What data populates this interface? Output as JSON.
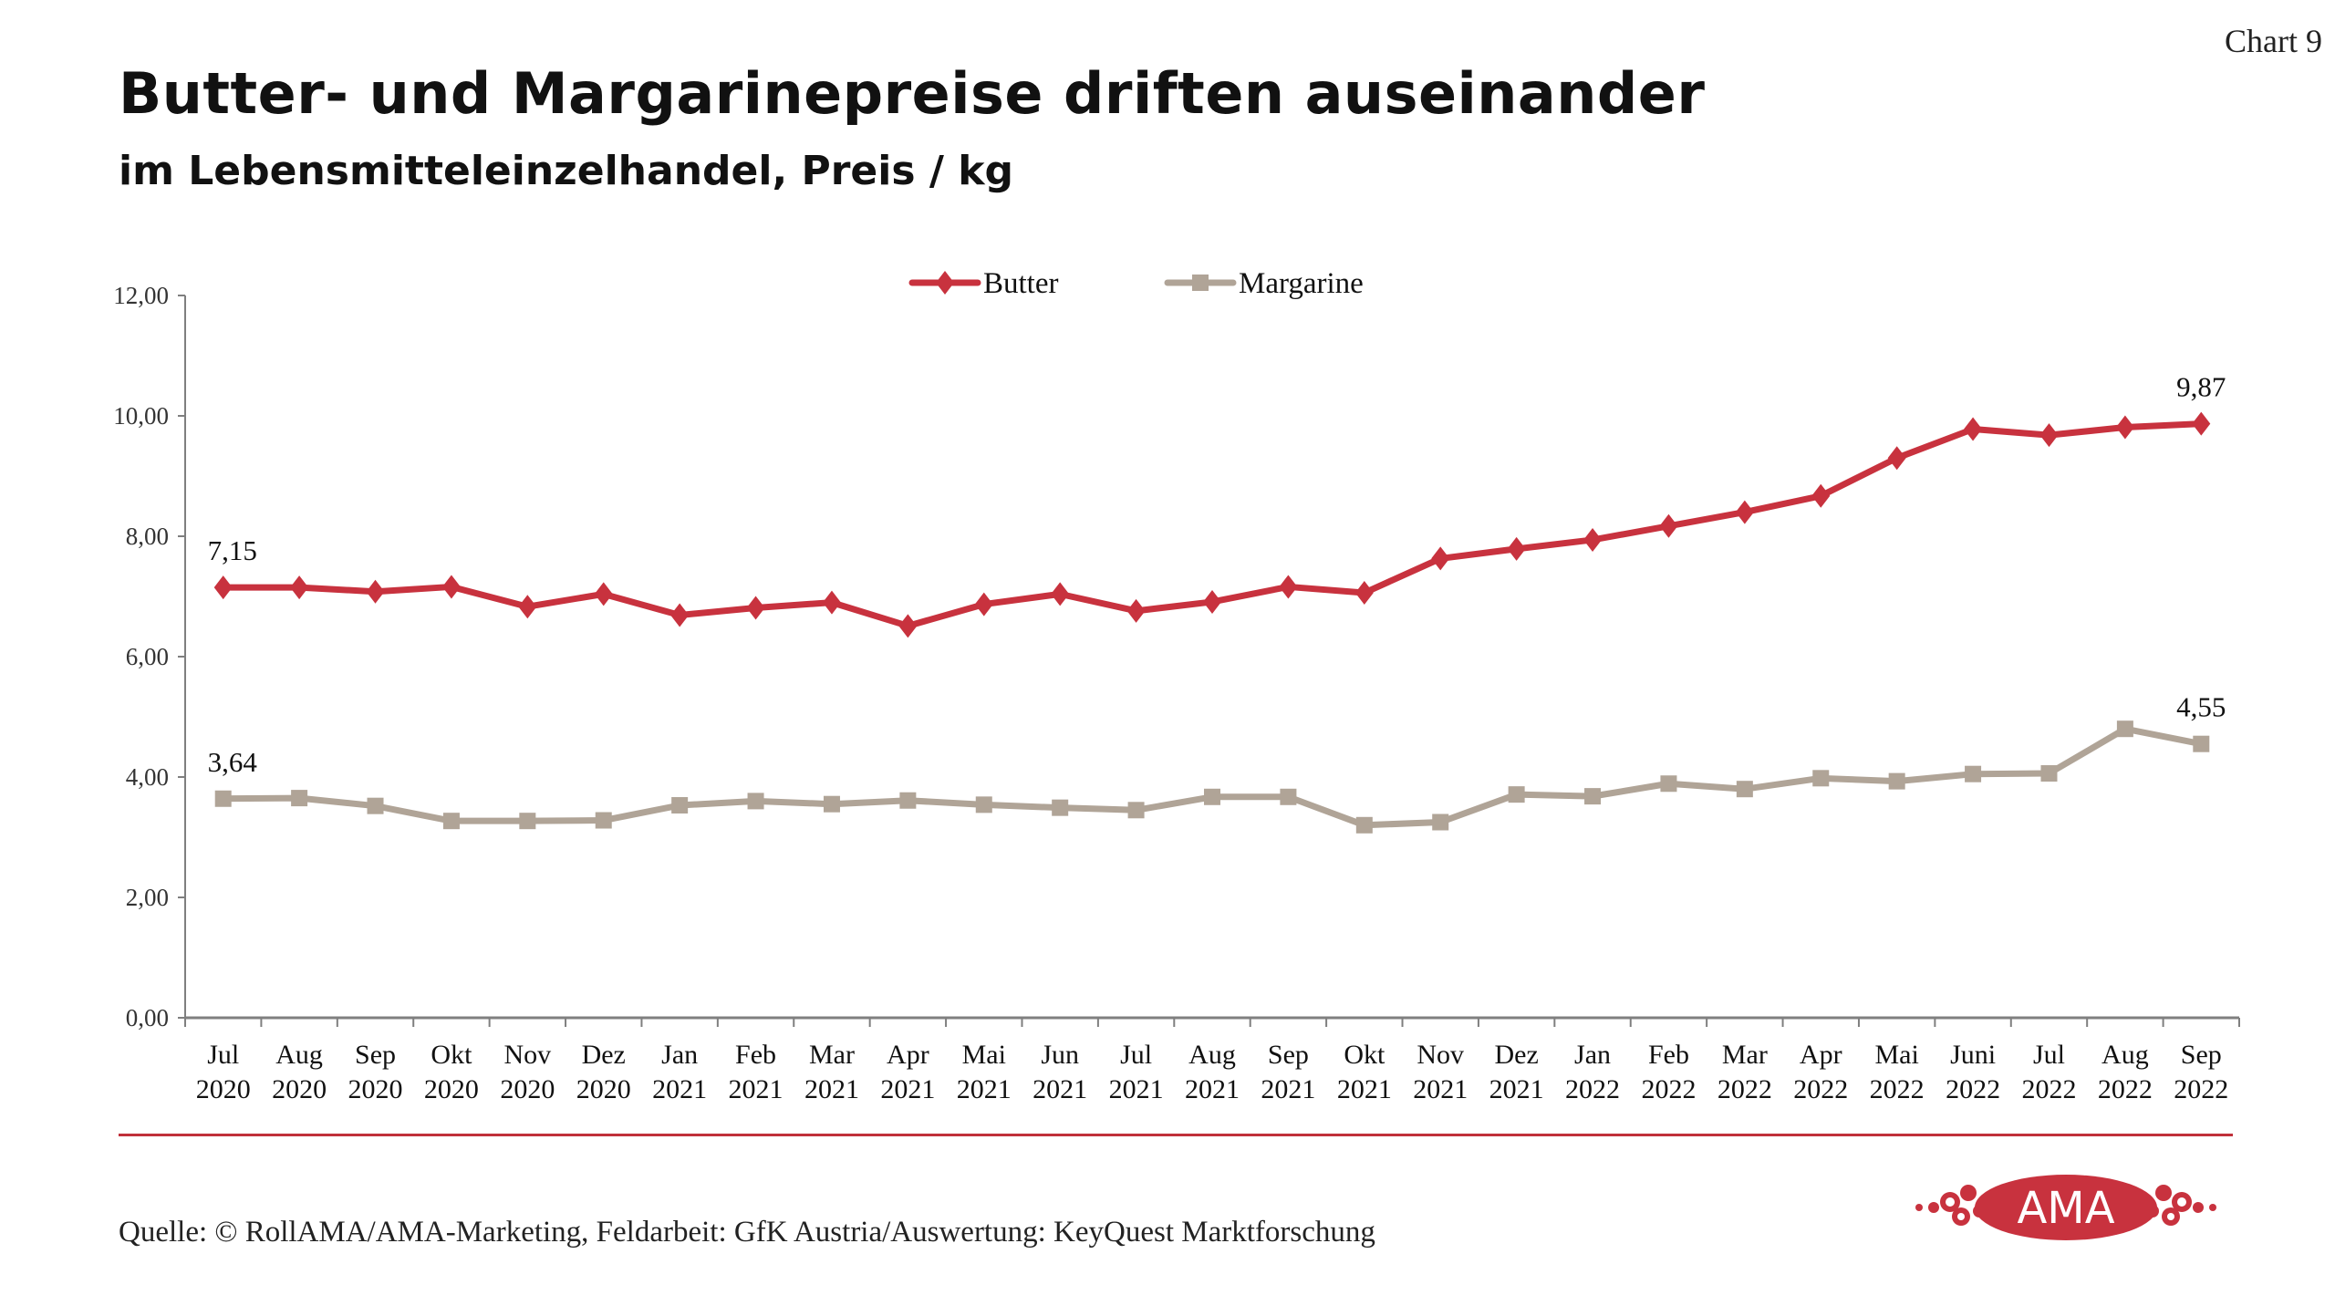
{
  "header": {
    "title": "Butter- und Margarinepreise driften auseinander",
    "subtitle": "im Lebensmitteleinzelhandel, Preis / kg",
    "chart_number": "Chart 9"
  },
  "footer": {
    "source": "Quelle: © RollAMA/AMA-Marketing, Feldarbeit: GfK Austria/Auswertung: KeyQuest Marktforschung",
    "logo_text": "AMA"
  },
  "colors": {
    "butter": "#c8323e",
    "margarine": "#b0a497",
    "accent": "#c0303a",
    "axis": "#7f7f7f"
  },
  "chart_data": {
    "type": "line",
    "title": "Butter- und Margarinepreise driften auseinander",
    "subtitle": "im Lebensmitteleinzelhandel, Preis / kg",
    "xlabel": "",
    "ylabel": "",
    "ylim": [
      0,
      12
    ],
    "yticks": [
      0,
      2,
      4,
      6,
      8,
      10,
      12
    ],
    "ytick_labels": [
      "0,00",
      "2,00",
      "4,00",
      "6,00",
      "8,00",
      "10,00",
      "12,00"
    ],
    "grid": false,
    "legend_position": "top-center",
    "categories": [
      [
        "Jul",
        "2020"
      ],
      [
        "Aug",
        "2020"
      ],
      [
        "Sep",
        "2020"
      ],
      [
        "Okt",
        "2020"
      ],
      [
        "Nov",
        "2020"
      ],
      [
        "Dez",
        "2020"
      ],
      [
        "Jan",
        "2021"
      ],
      [
        "Feb",
        "2021"
      ],
      [
        "Mar",
        "2021"
      ],
      [
        "Apr",
        "2021"
      ],
      [
        "Mai",
        "2021"
      ],
      [
        "Jun",
        "2021"
      ],
      [
        "Jul",
        "2021"
      ],
      [
        "Aug",
        "2021"
      ],
      [
        "Sep",
        "2021"
      ],
      [
        "Okt",
        "2021"
      ],
      [
        "Nov",
        "2021"
      ],
      [
        "Dez",
        "2021"
      ],
      [
        "Jan",
        "2022"
      ],
      [
        "Feb",
        "2022"
      ],
      [
        "Mar",
        "2022"
      ],
      [
        "Apr",
        "2022"
      ],
      [
        "Mai",
        "2022"
      ],
      [
        "Juni",
        "2022"
      ],
      [
        "Jul",
        "2022"
      ],
      [
        "Aug",
        "2022"
      ],
      [
        "Sep",
        "2022"
      ]
    ],
    "series": [
      {
        "name": "Butter",
        "marker": "diamond",
        "values": [
          7.15,
          7.15,
          7.08,
          7.16,
          6.83,
          7.04,
          6.69,
          6.81,
          6.9,
          6.51,
          6.87,
          7.04,
          6.76,
          6.91,
          7.16,
          7.06,
          7.63,
          7.79,
          7.94,
          8.17,
          8.4,
          8.67,
          9.3,
          9.78,
          9.68,
          9.81,
          9.87
        ],
        "annotations": [
          {
            "index": 0,
            "text": "7,15"
          },
          {
            "index": 26,
            "text": "9,87"
          }
        ]
      },
      {
        "name": "Margarine",
        "marker": "square",
        "values": [
          3.64,
          3.65,
          3.52,
          3.27,
          3.27,
          3.28,
          3.53,
          3.6,
          3.55,
          3.61,
          3.54,
          3.49,
          3.45,
          3.67,
          3.67,
          3.2,
          3.25,
          3.71,
          3.68,
          3.89,
          3.8,
          3.98,
          3.93,
          4.05,
          4.06,
          4.8,
          4.55
        ],
        "annotations": [
          {
            "index": 0,
            "text": "3,64"
          },
          {
            "index": 26,
            "text": "4,55"
          }
        ]
      }
    ]
  }
}
